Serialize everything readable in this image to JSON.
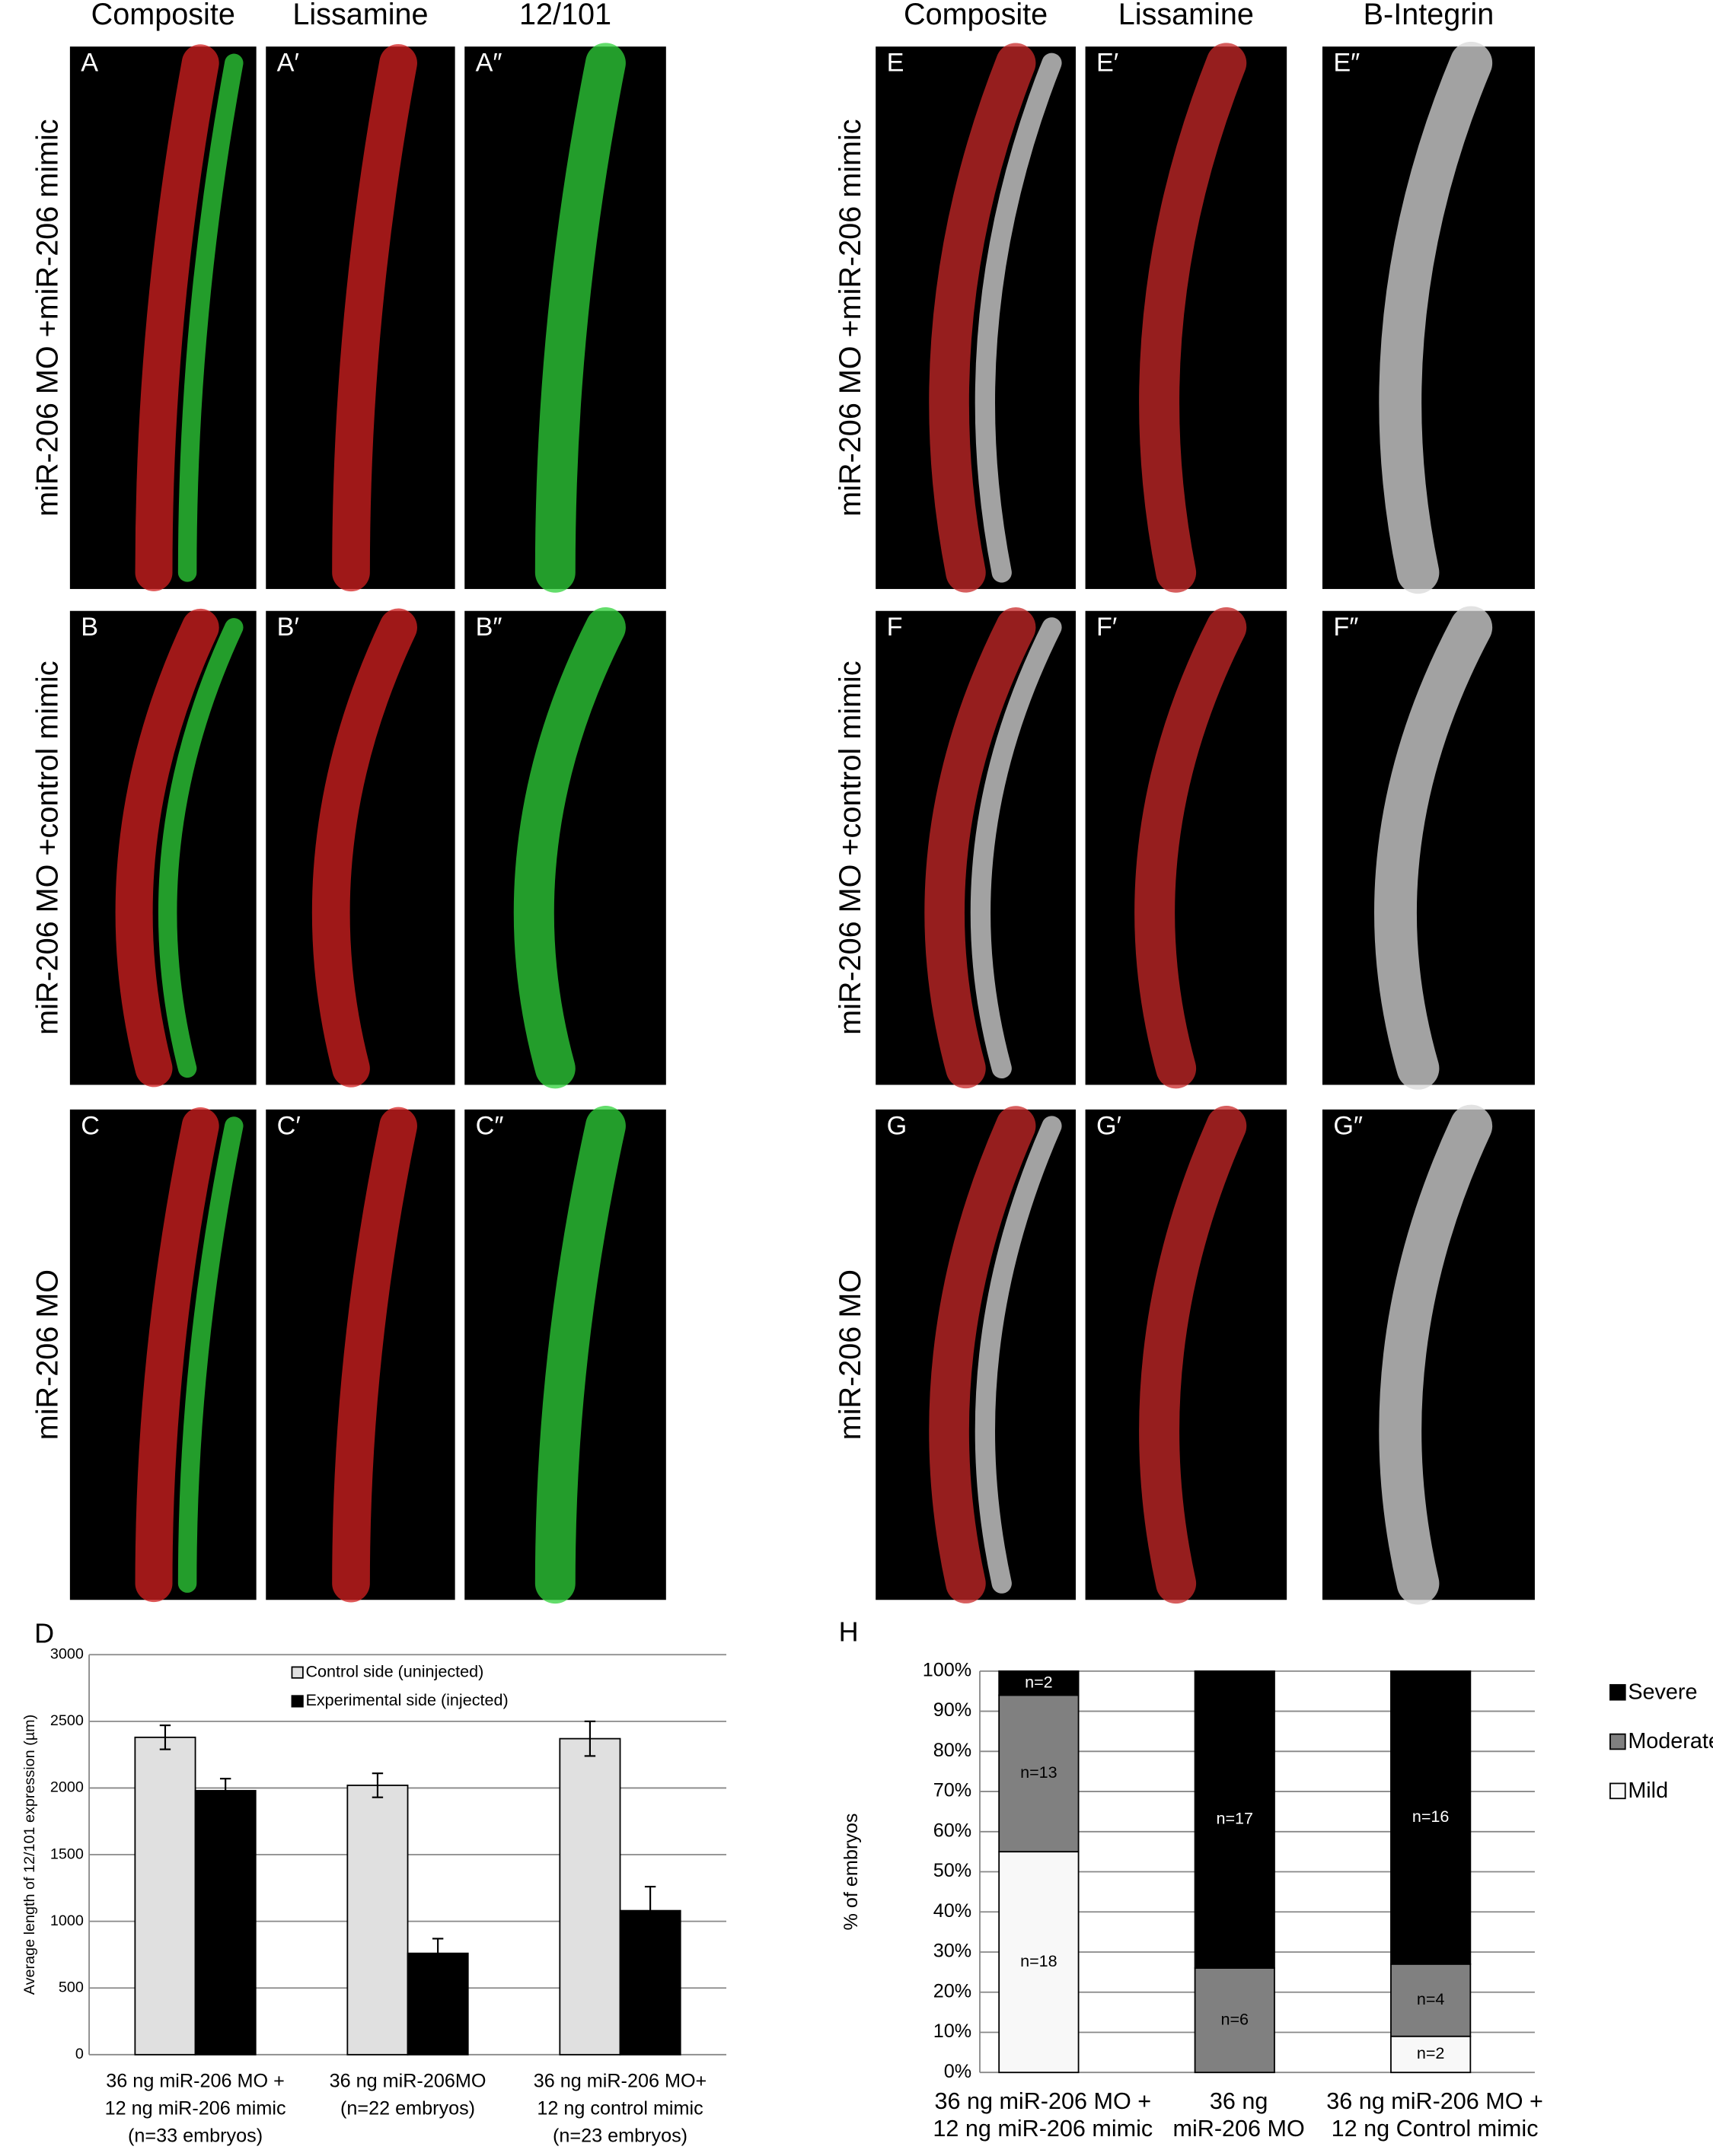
{
  "figure": {
    "left_headers": [
      "Composite",
      "Lissamine",
      "12/101"
    ],
    "right_headers": [
      "Composite",
      "Lissamine",
      "B-Integrin"
    ],
    "left_rows": [
      "miR-206 MO +miR-206 mimic",
      "miR-206 MO +control mimic",
      "miR-206 MO"
    ],
    "right_rows": [
      "miR-206 MO +miR-206 mimic",
      "miR-206 MO +control mimic",
      "miR-206 MO"
    ],
    "left_panels": [
      [
        "A",
        "A′",
        "A″"
      ],
      [
        "B",
        "B′",
        "B″"
      ],
      [
        "C",
        "C′",
        "C″"
      ]
    ],
    "right_panels": [
      [
        "E",
        "E′",
        "E″"
      ],
      [
        "F",
        "F′",
        "F″"
      ],
      [
        "G",
        "G′",
        "G″"
      ]
    ],
    "chart_labels": [
      "D",
      "H"
    ]
  },
  "chart_data": [
    {
      "type": "bar",
      "y_label": "Average length of 12/101 expression (µm)",
      "categories": [
        [
          "36 ng miR-206 MO +",
          "12 ng miR-206 mimic",
          "(n=33 embryos)"
        ],
        [
          "36 ng miR-206MO",
          "(n=22 embryos)"
        ],
        [
          "36 ng miR-206 MO+",
          "12 ng control mimic",
          "(n=23 embryos)"
        ]
      ],
      "series": [
        {
          "name": "Control side (uninjected)",
          "color": "#e0e0e0",
          "values": [
            2380,
            2020,
            2370
          ],
          "errors": [
            90,
            90,
            130
          ]
        },
        {
          "name": "Experimental side (injected)",
          "color": "#000000",
          "values": [
            1980,
            760,
            1080
          ],
          "errors": [
            90,
            110,
            180
          ]
        }
      ],
      "ylim": [
        0,
        3000
      ],
      "yticks": [
        0,
        500,
        1000,
        1500,
        2000,
        2500,
        3000
      ],
      "grid": true,
      "legend": "top"
    },
    {
      "type": "stacked_bar",
      "y_label": "% of embryos",
      "categories": [
        [
          "36 ng miR-206 MO +",
          "12 ng miR-206 mimic"
        ],
        [
          "36 ng",
          "miR-206 MO"
        ],
        [
          "36 ng miR-206 MO +",
          "12 ng Control mimic"
        ]
      ],
      "series": [
        {
          "name": "Mild",
          "color": "#f8f8f8",
          "values": [
            55,
            0,
            9
          ],
          "value_labels": [
            "n=18",
            null,
            "n=2"
          ]
        },
        {
          "name": "Moderate",
          "color": "#808080",
          "values": [
            39,
            26,
            18
          ],
          "value_labels": [
            "n=13",
            "n=6",
            "n=4"
          ]
        },
        {
          "name": "Severe",
          "color": "#000000",
          "values": [
            6,
            74,
            73
          ],
          "value_labels": [
            "n=2",
            "n=17",
            "n=16"
          ]
        }
      ],
      "ylim": [
        0,
        100
      ],
      "yticks": [
        {
          "value": 0,
          "label": "0%"
        },
        {
          "value": 10,
          "label": "10%"
        },
        {
          "value": 20,
          "label": "20%"
        },
        {
          "value": 30,
          "label": "30%"
        },
        {
          "value": 40,
          "label": "40%"
        },
        {
          "value": 50,
          "label": "50%"
        },
        {
          "value": 60,
          "label": "60%"
        },
        {
          "value": 70,
          "label": "70%"
        },
        {
          "value": 80,
          "label": "80%"
        },
        {
          "value": 90,
          "label": "90%"
        },
        {
          "value": 100,
          "label": "100%"
        }
      ],
      "grid": true,
      "legend": "right"
    }
  ]
}
